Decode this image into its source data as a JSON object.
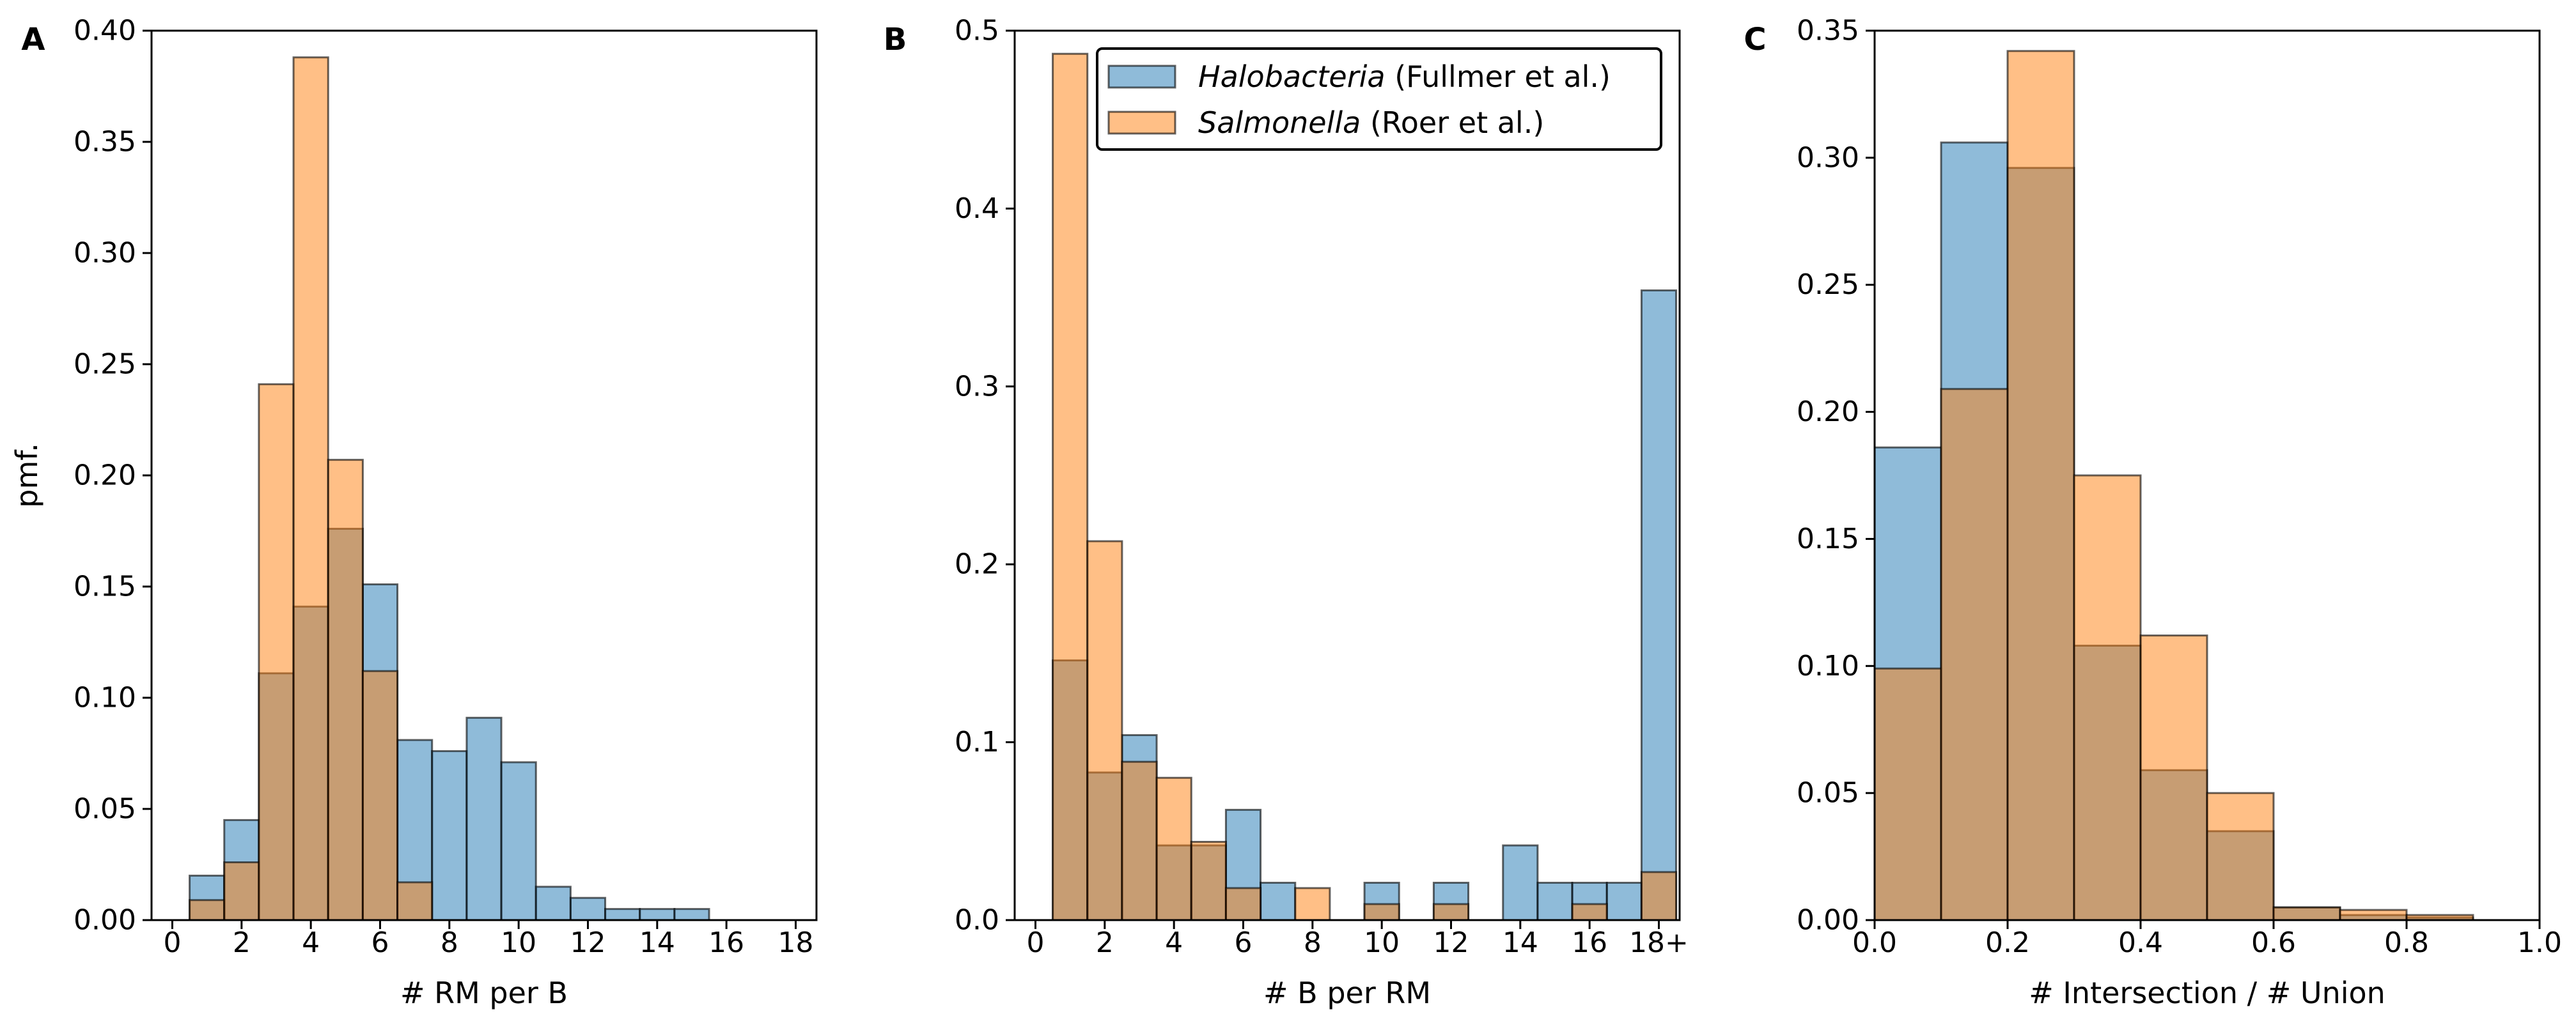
{
  "colors": {
    "series_blue": "#1f77b4",
    "series_orange": "#ff7f0e",
    "bar_alpha": 0.5,
    "edge": "#000000"
  },
  "legend": {
    "entries": [
      {
        "italic": "Halobacteria",
        "rest": " (Fullmer et al.)",
        "color": "#1f77b4"
      },
      {
        "italic": "Salmonella",
        "rest": " (Roer et al.)",
        "color": "#ff7f0e"
      }
    ],
    "placement": "top-right (panel B)"
  },
  "chart_data": [
    {
      "panel": "A",
      "type": "bar",
      "xlabel": "# RM per B",
      "ylabel": "pmf.",
      "xlim": [
        -0.6,
        18.6
      ],
      "ylim": [
        0,
        0.4
      ],
      "xticks": [
        0,
        2,
        4,
        6,
        8,
        10,
        12,
        14,
        16,
        18
      ],
      "xtick_labels": [
        "0",
        "2",
        "4",
        "6",
        "8",
        "10",
        "12",
        "14",
        "16",
        "18"
      ],
      "yticks": [
        0.0,
        0.05,
        0.1,
        0.15,
        0.2,
        0.25,
        0.3,
        0.35,
        0.4
      ],
      "ytick_labels": [
        "0.00",
        "0.05",
        "0.10",
        "0.15",
        "0.20",
        "0.25",
        "0.30",
        "0.35",
        "0.40"
      ],
      "bin_edges": [
        0.5,
        1.5,
        2.5,
        3.5,
        4.5,
        5.5,
        6.5,
        7.5,
        8.5,
        9.5,
        10.5,
        11.5,
        12.5,
        13.5,
        14.5,
        15.5
      ],
      "series": [
        {
          "name": "Halobacteria (Fullmer et al.)",
          "color": "#1f77b4",
          "values": [
            0.02,
            0.045,
            0.111,
            0.141,
            0.176,
            0.151,
            0.081,
            0.076,
            0.091,
            0.071,
            0.015,
            0.01,
            0.005,
            0.005,
            0.005
          ]
        },
        {
          "name": "Salmonella (Roer et al.)",
          "color": "#ff7f0e",
          "values": [
            0.009,
            0.026,
            0.241,
            0.388,
            0.207,
            0.112,
            0.017,
            0,
            0,
            0,
            0,
            0,
            0,
            0,
            0
          ]
        }
      ]
    },
    {
      "panel": "B",
      "type": "bar",
      "xlabel": "# B per RM",
      "ylabel": "",
      "xlim": [
        -0.6,
        18.6
      ],
      "ylim": [
        0,
        0.5
      ],
      "xticks": [
        0,
        2,
        4,
        6,
        8,
        10,
        12,
        14,
        16,
        18
      ],
      "xtick_labels": [
        "0",
        "2",
        "4",
        "6",
        "8",
        "10",
        "12",
        "14",
        "16",
        "18+"
      ],
      "yticks": [
        0.0,
        0.1,
        0.2,
        0.3,
        0.4,
        0.5
      ],
      "ytick_labels": [
        "0.0",
        "0.1",
        "0.2",
        "0.3",
        "0.4",
        "0.5"
      ],
      "bin_edges": [
        0.5,
        1.5,
        2.5,
        3.5,
        4.5,
        5.5,
        6.5,
        7.5,
        8.5,
        9.5,
        10.5,
        11.5,
        12.5,
        13.5,
        14.5,
        15.5,
        16.5,
        17.5,
        18.5
      ],
      "series": [
        {
          "name": "Halobacteria (Fullmer et al.)",
          "color": "#1f77b4",
          "values": [
            0.146,
            0.083,
            0.104,
            0.042,
            0.042,
            0.062,
            0.021,
            0,
            0,
            0.021,
            0,
            0.021,
            0,
            0.042,
            0.021,
            0.021,
            0.021,
            0.354
          ]
        },
        {
          "name": "Salmonella (Roer et al.)",
          "color": "#ff7f0e",
          "values": [
            0.487,
            0.213,
            0.089,
            0.08,
            0.044,
            0.018,
            0,
            0.018,
            0,
            0.009,
            0,
            0.009,
            0,
            0,
            0,
            0.009,
            0,
            0.027
          ]
        }
      ]
    },
    {
      "panel": "C",
      "type": "bar",
      "xlabel": "# Intersection / # Union",
      "ylabel": "",
      "xlim": [
        0,
        1.0
      ],
      "ylim": [
        0,
        0.35
      ],
      "xticks": [
        0,
        0.2,
        0.4,
        0.6,
        0.8,
        1.0
      ],
      "xtick_labels": [
        "0.0",
        "0.2",
        "0.4",
        "0.6",
        "0.8",
        "1.0"
      ],
      "yticks": [
        0.0,
        0.05,
        0.1,
        0.15,
        0.2,
        0.25,
        0.3,
        0.35
      ],
      "ytick_labels": [
        "0.00",
        "0.05",
        "0.10",
        "0.15",
        "0.20",
        "0.25",
        "0.30",
        "0.35"
      ],
      "bin_edges": [
        0,
        0.1,
        0.2,
        0.3,
        0.4,
        0.5,
        0.6,
        0.7,
        0.8,
        0.9
      ],
      "series": [
        {
          "name": "Halobacteria (Fullmer et al.)",
          "color": "#1f77b4",
          "values": [
            0.186,
            0.306,
            0.296,
            0.108,
            0.059,
            0.035,
            0.005,
            0.002,
            0.001
          ]
        },
        {
          "name": "Salmonella (Roer et al.)",
          "color": "#ff7f0e",
          "values": [
            0.099,
            0.209,
            0.342,
            0.175,
            0.112,
            0.05,
            0.005,
            0.004,
            0.002
          ]
        }
      ]
    }
  ]
}
